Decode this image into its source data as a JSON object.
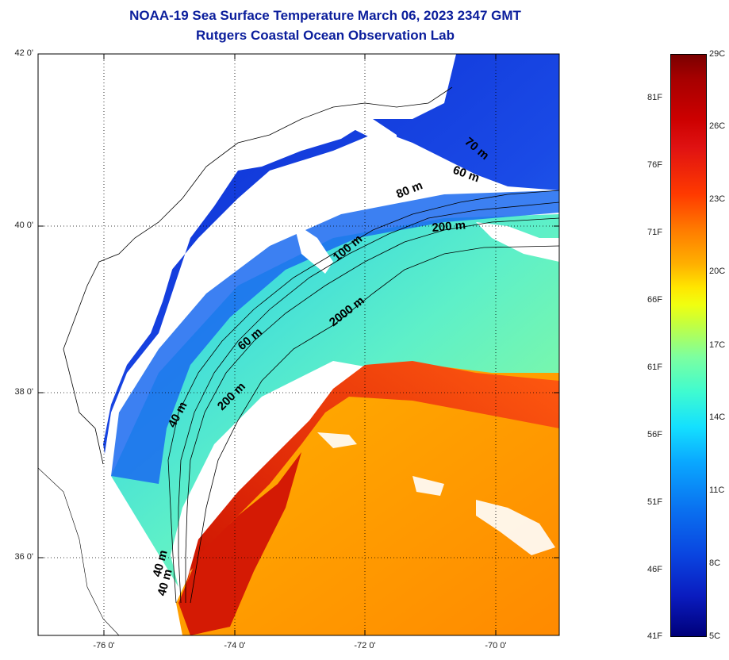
{
  "title": {
    "line1": "NOAA-19 Sea Surface Temperature March 06, 2023 2347 GMT",
    "line2": "Rutgers Coastal Ocean Observation Lab"
  },
  "map": {
    "lat_labels": [
      "42 0'",
      "40 0'",
      "38 0'",
      "36 0'"
    ],
    "lon_labels": [
      "-76 0'",
      "-74 0'",
      "-72 0'",
      "-70 0'"
    ],
    "contour_labels": {
      "c1": "40 m",
      "c2": "60 m",
      "c3": "80 m",
      "c4": "100 m",
      "c5": "200 m",
      "c6": "2000 m",
      "c7": "200 m",
      "c8": "60 m",
      "c9": "40 m",
      "c10": "70 m",
      "c11": "40 m"
    },
    "colors": {
      "land": "#ffffff",
      "cold_shelf": "#1432d8",
      "slope": "#2ac8f0",
      "gulf_stream": "#e01d0a",
      "warm_core": "#ff9a00",
      "contour_lines": "#000000"
    }
  },
  "colorbar": {
    "fahrenheit_labels": [
      "81F",
      "76F",
      "71F",
      "66F",
      "61F",
      "56F",
      "51F",
      "46F",
      "41F"
    ],
    "celsius_labels": [
      "29C",
      "26C",
      "23C",
      "20C",
      "17C",
      "14C",
      "11C",
      "8C",
      "5C"
    ],
    "range_celsius": [
      5,
      29
    ],
    "range_fahrenheit": [
      41,
      84
    ]
  }
}
